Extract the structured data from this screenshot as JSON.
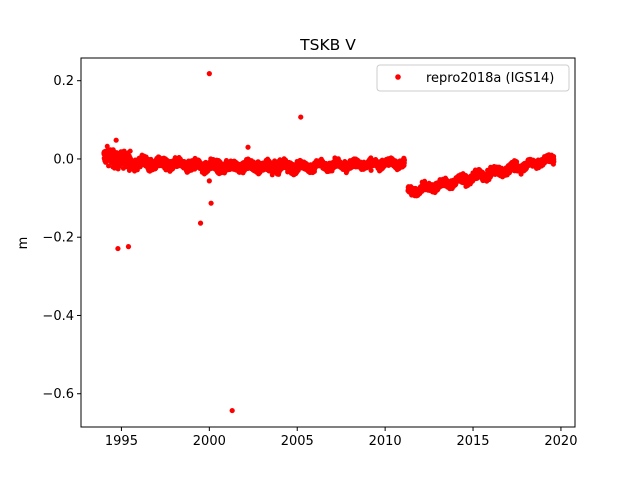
{
  "chart_data": {
    "type": "scatter",
    "title": "TSKB V",
    "xlabel": "",
    "ylabel": "m",
    "xlim": [
      1992.7,
      2020.8
    ],
    "ylim": [
      -0.685,
      0.258
    ],
    "x_ticks": [
      1995,
      2000,
      2005,
      2010,
      2015,
      2020
    ],
    "x_tick_labels": [
      "1995",
      "2000",
      "2005",
      "2010",
      "2015",
      "2020"
    ],
    "y_ticks": [
      0.2,
      0.0,
      -0.2,
      -0.4,
      -0.6
    ],
    "y_tick_labels": [
      "0.2",
      "0.0",
      "−0.2",
      "−0.4",
      "−0.6"
    ],
    "grid": false,
    "legend": {
      "position": "top-right",
      "entries": [
        "repro2018a (IGS14)"
      ]
    },
    "series": [
      {
        "name": "repro2018a (IGS14)",
        "color": "#ff0000",
        "marker": "circle",
        "trend_segments": [
          {
            "x_start": 1994.0,
            "x_end": 1995.5,
            "y_start": 0.005,
            "y_end": -0.005,
            "spread": 0.035
          },
          {
            "x_start": 1995.5,
            "x_end": 2000.0,
            "y_start": -0.01,
            "y_end": -0.018,
            "spread": 0.022
          },
          {
            "x_start": 2000.0,
            "x_end": 2005.0,
            "y_start": -0.018,
            "y_end": -0.02,
            "spread": 0.024
          },
          {
            "x_start": 2005.0,
            "x_end": 2011.1,
            "y_start": -0.02,
            "y_end": -0.01,
            "spread": 0.018
          },
          {
            "x_start": 2011.3,
            "x_end": 2019.6,
            "y_start": -0.085,
            "y_end": 0.0,
            "spread": 0.018
          }
        ],
        "outliers": [
          {
            "x": 1994.7,
            "y": 0.048
          },
          {
            "x": 1994.8,
            "y": -0.229
          },
          {
            "x": 1995.4,
            "y": -0.224
          },
          {
            "x": 1999.5,
            "y": -0.164
          },
          {
            "x": 2000.0,
            "y": 0.218
          },
          {
            "x": 2000.0,
            "y": -0.056
          },
          {
            "x": 2000.1,
            "y": -0.113
          },
          {
            "x": 2001.3,
            "y": -0.643
          },
          {
            "x": 2002.2,
            "y": 0.03
          },
          {
            "x": 2005.2,
            "y": 0.107
          },
          {
            "x": 2009.2,
            "y": -0.029
          }
        ]
      }
    ]
  }
}
